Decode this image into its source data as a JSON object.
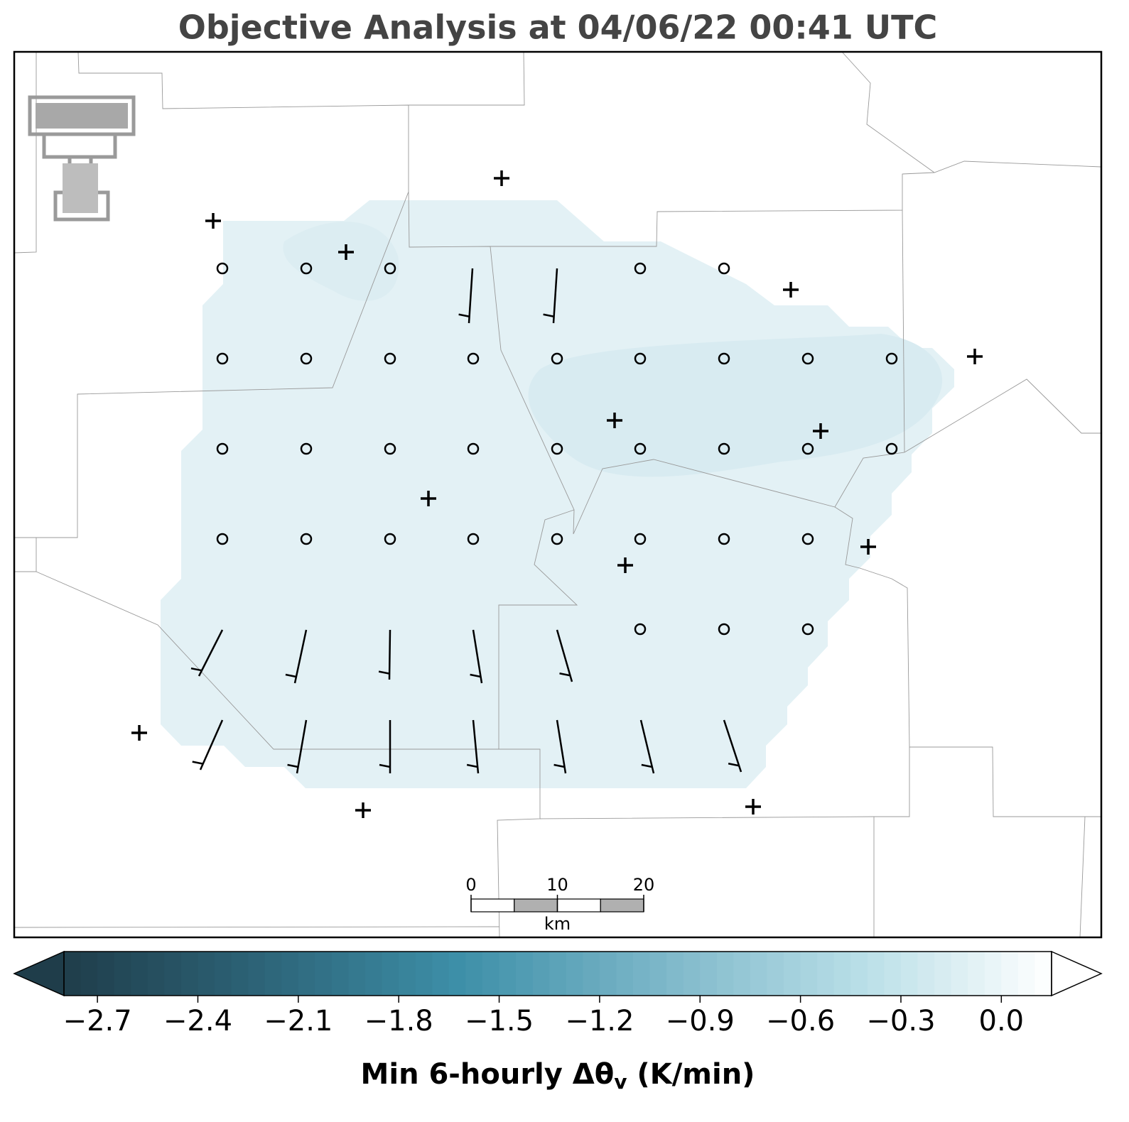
{
  "title": "Objective Analysis at 04/06/22 00:41 UTC",
  "scale_bar": {
    "ticks": [
      0,
      10,
      20
    ],
    "unit": "km"
  },
  "colorbar": {
    "lim": [
      -2.8,
      0.15
    ],
    "colors": [
      "#1f3d4a",
      "#2d6478",
      "#3d8fa8",
      "#7bb6c8",
      "#b6dde6",
      "#ffffff"
    ],
    "ticks": [
      {
        "value": -2.7,
        "label": "−2.7"
      },
      {
        "value": -2.4,
        "label": "−2.4"
      },
      {
        "value": -2.1,
        "label": "−2.1"
      },
      {
        "value": -1.8,
        "label": "−1.8"
      },
      {
        "value": -1.5,
        "label": "−1.5"
      },
      {
        "value": -1.2,
        "label": "−1.2"
      },
      {
        "value": -0.9,
        "label": "−0.9"
      },
      {
        "value": -0.6,
        "label": "−0.6"
      },
      {
        "value": -0.3,
        "label": "−0.3"
      },
      {
        "value": 0,
        "label": "0.0"
      }
    ],
    "label": [
      "Min 6-hourly Δθ",
      "v",
      " (K/min)"
    ]
  }
}
